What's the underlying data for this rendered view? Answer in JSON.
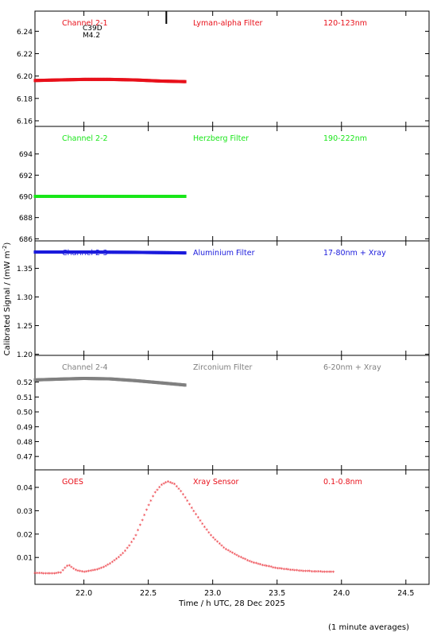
{
  "colors": {
    "red": "#e8101a",
    "green": "#19e619",
    "blue": "#1a1adc",
    "gray": "#808080",
    "axis": "#000000"
  },
  "chart_data": {
    "type": "scatter",
    "ylabel": "Calibrated Signal / (mW m-2)",
    "ylabel_main": "Calibrated Signal / (mW m",
    "ylabel_sup": "-2",
    "ylabel_end": ")",
    "xlabel": "Time / h UTC, 28 Dec 2025",
    "footnote": "(1 minute averages)",
    "xlim": [
      21.62,
      24.68
    ],
    "xticks": [
      22.0,
      22.5,
      23.0,
      23.5,
      24.0,
      24.5
    ],
    "xtick_labels": [
      "22.0",
      "22.5",
      "23.0",
      "23.5",
      "24.0",
      "24.5"
    ],
    "panels": [
      {
        "channel": "Channel 2-1",
        "filter": "Lyman-alpha Filter",
        "band": "120-123nm",
        "color": "red",
        "ylim": [
          6.155,
          6.258
        ],
        "yticks": [
          6.16,
          6.18,
          6.2,
          6.22,
          6.24
        ],
        "ytick_labels": [
          "6.16",
          "6.18",
          "6.20",
          "6.22",
          "6.24"
        ],
        "annotation_lines": [
          "C39D",
          "M4.2"
        ],
        "marker_x": 22.64,
        "x": [
          21.62,
          21.8,
          22.0,
          22.2,
          22.4,
          22.6,
          22.79
        ],
        "y": [
          6.196,
          6.1965,
          6.197,
          6.197,
          6.1965,
          6.1955,
          6.195
        ]
      },
      {
        "channel": "Channel 2-2",
        "filter": "Herzberg Filter",
        "band": "190-222nm",
        "color": "green",
        "ylim": [
          685.8,
          696.6
        ],
        "yticks": [
          686,
          688,
          690,
          692,
          694
        ],
        "ytick_labels": [
          "686",
          "688",
          "690",
          "692",
          "694"
        ],
        "x": [
          21.62,
          22.79
        ],
        "y": [
          690.0,
          690.0
        ]
      },
      {
        "channel": "Channel 2-3",
        "filter": "Aluminium Filter",
        "band": "17-80nm + Xray",
        "color": "blue",
        "ylim": [
          1.198,
          1.398
        ],
        "yticks": [
          1.2,
          1.25,
          1.3,
          1.35
        ],
        "ytick_labels": [
          "1.20",
          "1.25",
          "1.30",
          "1.35"
        ],
        "x": [
          21.62,
          22.0,
          22.4,
          22.79
        ],
        "y": [
          1.3785,
          1.3785,
          1.378,
          1.377
        ]
      },
      {
        "channel": "Channel 2-4",
        "filter": "Zirconium Filter",
        "band": "6-20nm + Xray",
        "color": "gray",
        "ylim": [
          0.461,
          0.538
        ],
        "yticks": [
          0.47,
          0.48,
          0.49,
          0.5,
          0.51,
          0.52
        ],
        "ytick_labels": [
          "0.47",
          "0.48",
          "0.49",
          "0.50",
          "0.51",
          "0.52"
        ],
        "x": [
          21.62,
          21.8,
          22.0,
          22.2,
          22.4,
          22.6,
          22.79
        ],
        "y": [
          0.5215,
          0.522,
          0.5225,
          0.5222,
          0.521,
          0.5195,
          0.518
        ]
      },
      {
        "channel": "GOES",
        "filter": "Xray Sensor",
        "band": "0.1-0.8nm",
        "color": "red",
        "ylim": [
          -0.0015,
          0.0475
        ],
        "yticks": [
          0.01,
          0.02,
          0.03,
          0.04
        ],
        "ytick_labels": [
          "0.01",
          "0.02",
          "0.03",
          "0.04"
        ],
        "x": [
          21.62,
          21.75,
          21.82,
          21.86,
          21.88,
          21.91,
          21.95,
          22.0,
          22.05,
          22.1,
          22.15,
          22.2,
          22.25,
          22.3,
          22.35,
          22.4,
          22.45,
          22.5,
          22.55,
          22.6,
          22.65,
          22.7,
          22.75,
          22.8,
          22.85,
          22.9,
          22.95,
          23.0,
          23.1,
          23.2,
          23.3,
          23.4,
          23.5,
          23.6,
          23.7,
          23.8,
          23.9,
          23.95
        ],
        "y": [
          0.0033,
          0.003,
          0.0035,
          0.0058,
          0.0067,
          0.0055,
          0.0043,
          0.0038,
          0.0042,
          0.0048,
          0.0058,
          0.0072,
          0.0092,
          0.0115,
          0.0148,
          0.019,
          0.0255,
          0.032,
          0.0375,
          0.041,
          0.0425,
          0.0415,
          0.0385,
          0.0345,
          0.03,
          0.026,
          0.022,
          0.0185,
          0.0135,
          0.0105,
          0.008,
          0.0065,
          0.0054,
          0.0047,
          0.0042,
          0.0039,
          0.0038,
          0.0037
        ]
      }
    ]
  }
}
